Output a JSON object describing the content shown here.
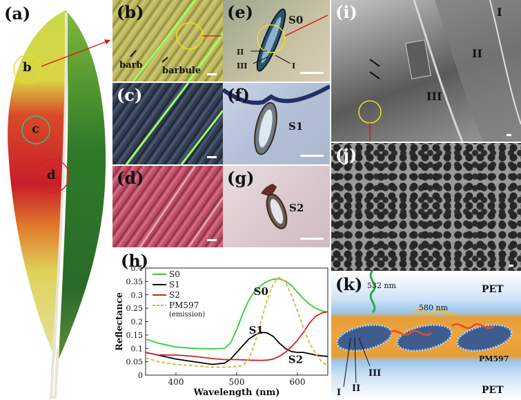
{
  "figure": {
    "panel_labels": {
      "a": "(a)",
      "b": "(b)",
      "c": "(c)",
      "d": "(d)",
      "e": "(e)",
      "f": "(f)",
      "g": "(g)",
      "h": "(h)",
      "i": "(i)",
      "j": "(j)",
      "k": "(k)"
    },
    "panel_a": {
      "markers": [
        "b",
        "c",
        "d"
      ]
    },
    "panel_b": {
      "barb": "barb",
      "barbule": "barbule"
    },
    "panel_e": {
      "sample": "S0",
      "layers": [
        "II",
        "III",
        "I"
      ]
    },
    "panel_f": {
      "sample": "S1"
    },
    "panel_g": {
      "sample": "S2"
    },
    "panel_i": {
      "layers": [
        "I",
        "II",
        "III"
      ]
    },
    "panel_k": {
      "top_layer": "PET",
      "bottom_layer": "PET",
      "dye": "PM597",
      "excitation": "532 nm",
      "emission": "580 nm",
      "layers": [
        "I",
        "II",
        "III"
      ]
    }
  },
  "chart_data": {
    "type": "line",
    "xlabel": "Wavelength (nm)",
    "ylabel": "Reflectance",
    "xlim": [
      350,
      650
    ],
    "ylim": [
      0,
      0.4
    ],
    "xticks": [
      400,
      500,
      600
    ],
    "yticks": [
      0,
      0.05,
      0.1,
      0.15,
      0.2,
      0.25,
      0.3,
      0.35,
      0.4
    ],
    "legend_position": "top-left",
    "series": [
      {
        "name": "S0",
        "color": "#33cc33",
        "dash": "solid",
        "x": [
          350,
          370,
          400,
          430,
          460,
          480,
          490,
          500,
          510,
          520,
          530,
          540,
          550,
          560,
          570,
          580,
          590,
          600,
          610,
          620,
          630,
          640,
          650
        ],
        "y": [
          0.135,
          0.12,
          0.105,
          0.1,
          0.098,
          0.1,
          0.12,
          0.17,
          0.23,
          0.28,
          0.315,
          0.335,
          0.35,
          0.358,
          0.36,
          0.352,
          0.335,
          0.31,
          0.285,
          0.265,
          0.25,
          0.24,
          0.235
        ]
      },
      {
        "name": "S1",
        "color": "#000000",
        "dash": "solid",
        "x": [
          350,
          370,
          400,
          430,
          460,
          480,
          490,
          500,
          510,
          520,
          530,
          540,
          550,
          560,
          570,
          580,
          590,
          600,
          610,
          620,
          630,
          640,
          650
        ],
        "y": [
          0.085,
          0.075,
          0.06,
          0.05,
          0.04,
          0.045,
          0.06,
          0.085,
          0.11,
          0.135,
          0.15,
          0.16,
          0.158,
          0.145,
          0.12,
          0.1,
          0.088,
          0.085,
          0.085,
          0.08,
          0.075,
          0.072,
          0.07
        ]
      },
      {
        "name": "S2",
        "color": "#cc2222",
        "dash": "solid",
        "x": [
          350,
          370,
          400,
          430,
          460,
          480,
          500,
          520,
          540,
          550,
          560,
          570,
          580,
          590,
          600,
          610,
          620,
          630,
          640,
          650
        ],
        "y": [
          0.085,
          0.075,
          0.075,
          0.07,
          0.062,
          0.058,
          0.058,
          0.056,
          0.055,
          0.056,
          0.06,
          0.07,
          0.085,
          0.105,
          0.13,
          0.16,
          0.195,
          0.22,
          0.232,
          0.237
        ]
      },
      {
        "name": "PM597",
        "name_note": "(emission)",
        "color": "#d9b23a",
        "dash": "dashed",
        "x": [
          350,
          370,
          400,
          430,
          460,
          490,
          510,
          520,
          530,
          540,
          550,
          560,
          570,
          580,
          590,
          600,
          610,
          620,
          630,
          640,
          650
        ],
        "y": [
          0.065,
          0.05,
          0.04,
          0.035,
          0.03,
          0.03,
          0.035,
          0.06,
          0.12,
          0.2,
          0.28,
          0.34,
          0.365,
          0.35,
          0.3,
          0.24,
          0.175,
          0.12,
          0.08,
          0.05,
          0.035
        ]
      }
    ],
    "annotations": [
      {
        "text": "S0",
        "x": 528,
        "y": 0.3
      },
      {
        "text": "S1",
        "x": 520,
        "y": 0.155
      },
      {
        "text": "S2",
        "x": 585,
        "y": 0.045
      }
    ]
  }
}
